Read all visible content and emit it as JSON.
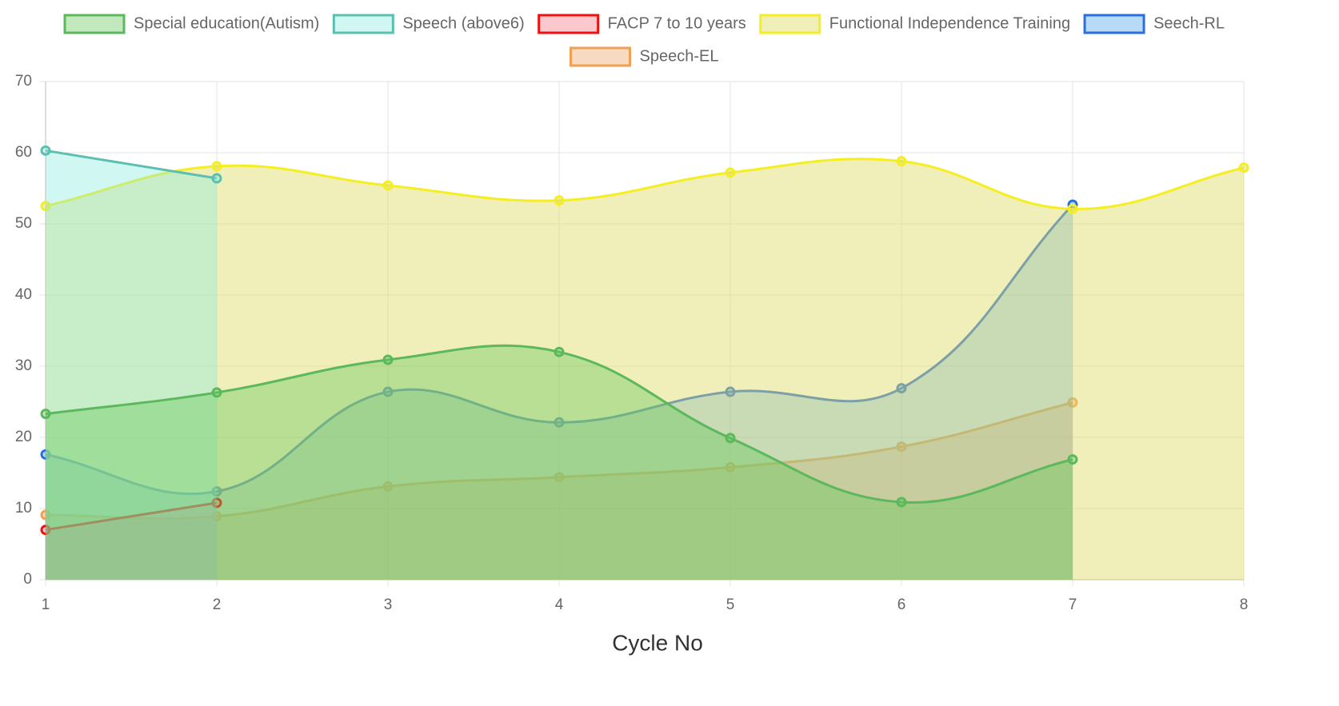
{
  "chart_data": {
    "type": "line",
    "x_label": "Cycle No",
    "x": [
      1,
      2,
      3,
      4,
      5,
      6,
      7,
      8
    ],
    "xlim": [
      1,
      8
    ],
    "xticks": [
      1,
      2,
      3,
      4,
      5,
      6,
      7,
      8
    ],
    "ylim": [
      0,
      70
    ],
    "yticks": [
      0,
      10,
      20,
      30,
      40,
      50,
      60,
      70
    ],
    "grid": true,
    "fill": true,
    "smooth": true,
    "legend": "top",
    "series": [
      {
        "name": "Special education(Autism)",
        "color": "#5cb85c",
        "fill": "rgba(100,200,90,0.4)",
        "values": [
          23.3,
          26.3,
          30.9,
          32.0,
          19.9,
          10.9,
          16.9,
          null
        ]
      },
      {
        "name": "Speech (above6)",
        "color": "#5bc0b0",
        "fill": "rgba(140,235,225,0.4)",
        "values": [
          60.3,
          56.4,
          null,
          null,
          null,
          null,
          null,
          null
        ]
      },
      {
        "name": "FACP 7 to 10 years",
        "color": "#ee1111",
        "fill": "rgba(245,120,130,0.4)",
        "values": [
          7.0,
          10.8,
          null,
          null,
          null,
          null,
          null,
          null
        ]
      },
      {
        "name": "Functional Independence Training",
        "color": "#f5ee20",
        "fill": "rgba(225,220,100,0.45)",
        "values": [
          52.5,
          58.1,
          55.4,
          53.3,
          57.2,
          58.8,
          52.1,
          57.9
        ]
      },
      {
        "name": "Seech-RL",
        "color": "#2a6fdb",
        "fill": "rgba(50,150,230,0.35)",
        "values": [
          17.6,
          12.4,
          26.4,
          22.1,
          26.4,
          26.9,
          52.7,
          null
        ]
      },
      {
        "name": "Speech-EL",
        "color": "#f0a050",
        "fill": "rgba(235,150,80,0.35)",
        "values": [
          9.1,
          8.9,
          13.1,
          14.4,
          15.8,
          18.7,
          24.9,
          null
        ]
      }
    ]
  }
}
